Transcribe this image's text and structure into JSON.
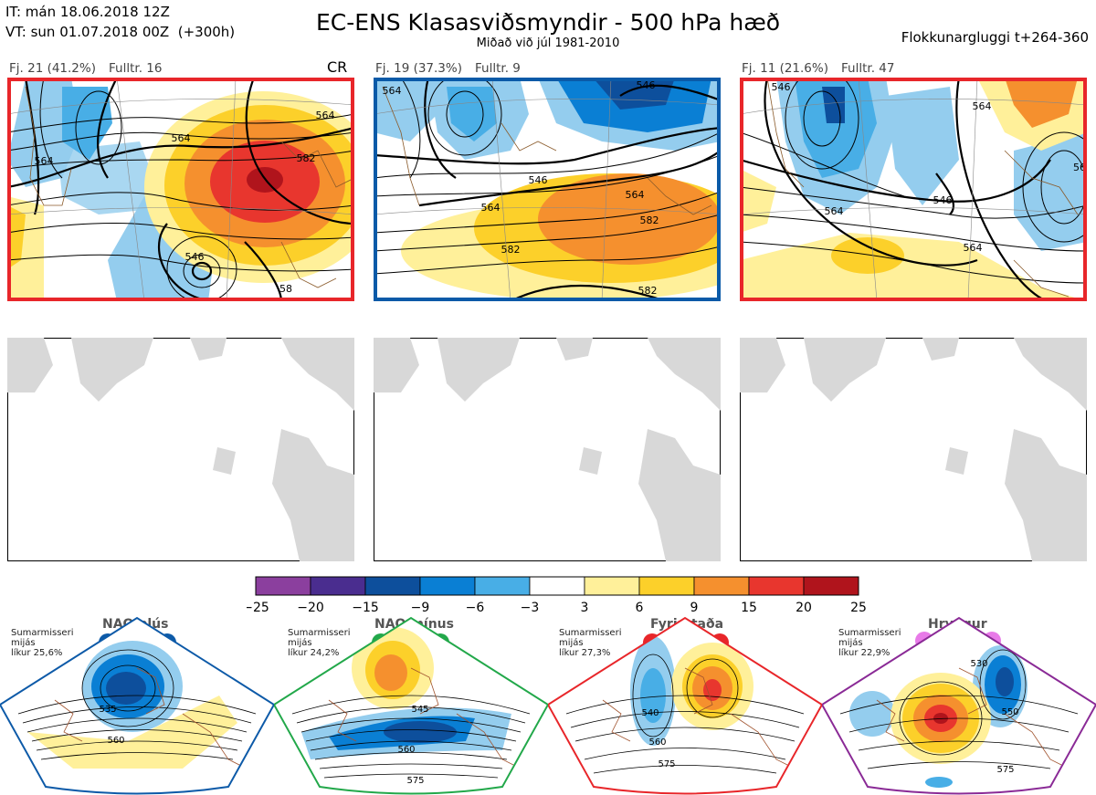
{
  "header": {
    "it_line": "IT: mán 18.06.2018 12Z",
    "vt_line": "VT: sun 01.07.2018 00Z  (+300h)",
    "title": "EC-ENS Klasasviðsmyndir - 500 hPa hæð",
    "subtitle": "Miðað við júl 1981-2010",
    "window": "Flokkunargluggi t+264-360"
  },
  "panels": [
    {
      "fj": "Fj. 21 (41.2%)",
      "fulltr": "Fulltr. 16",
      "mark": "CR",
      "border_color": "#e8262a",
      "contour_labels": [
        "564",
        "564",
        "582",
        "546",
        "564",
        "58"
      ]
    },
    {
      "fj": "Fj. 19 (37.3%)",
      "fulltr": "Fulltr. 9",
      "border_color": "#0a5aa8",
      "contour_labels": [
        "564",
        "546",
        "564",
        "564",
        "582",
        "582",
        "582",
        "546"
      ]
    },
    {
      "fj": "Fj. 11 (21.6%)",
      "fulltr": "Fulltr. 47",
      "border_color": "#e8262a",
      "contour_labels": [
        "546",
        "564",
        "546",
        "564",
        "564",
        "56"
      ]
    }
  ],
  "colorbar": {
    "ticks": [
      "−25",
      "−20",
      "−15",
      "−9",
      "−6",
      "−3",
      "3",
      "6",
      "9",
      "15",
      "20",
      "25"
    ],
    "colors": [
      "#8b3f9e",
      "#4a2d8f",
      "#0d4f9c",
      "#0a7fd4",
      "#48aee6",
      "#94cdee",
      "#ffffff",
      "#fff09a",
      "#fcd02a",
      "#f5902e",
      "#e8362e",
      "#b0141c"
    ]
  },
  "regimes": [
    {
      "name": "NAO plús",
      "season": "Sumarmisseri",
      "metric": "mijás",
      "likelihood": "líkur 25,6%",
      "color": "#0d5aa8",
      "border": "#0d5aa8",
      "labels": [
        "535",
        "560"
      ]
    },
    {
      "name": "NAO mínus",
      "season": "Sumarmisseri",
      "metric": "mijás",
      "likelihood": "líkur 24,2%",
      "color": "#22a84a",
      "border": "#22a84a",
      "labels": [
        "545",
        "560",
        "575"
      ]
    },
    {
      "name": "Fyrirstaða",
      "season": "Sumarmisseri",
      "metric": "mijás",
      "likelihood": "líkur 27,3%",
      "color": "#e8262a",
      "border": "#e8262a",
      "labels": [
        "540",
        "560",
        "575"
      ]
    },
    {
      "name": "Hryggur",
      "season": "Sumarmisseri",
      "metric": "mijás",
      "likelihood": "líkur 22,9%",
      "color": "#e87ae8",
      "border": "#8a2a96",
      "labels": [
        "530",
        "550",
        "575"
      ]
    }
  ]
}
